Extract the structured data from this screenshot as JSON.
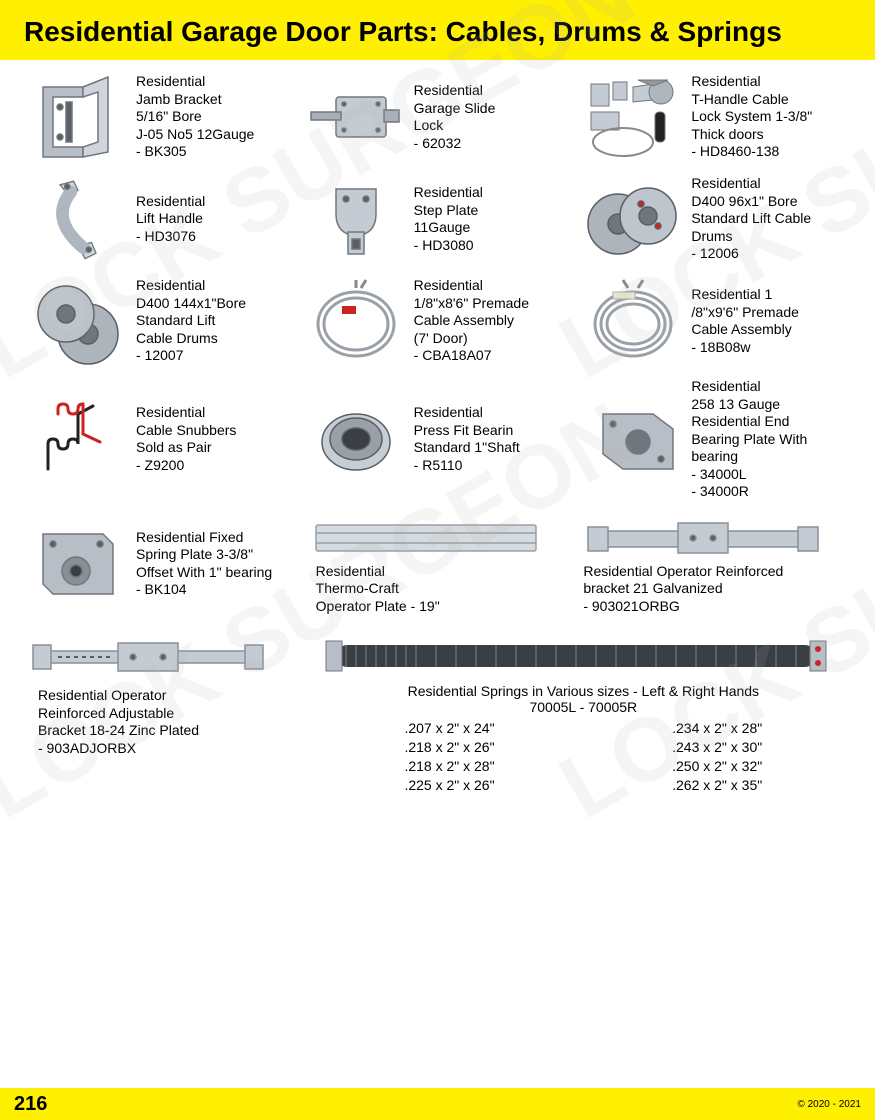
{
  "header": {
    "title": "Residential Garage Door Parts: Cables, Drums & Springs"
  },
  "watermark_text": "LOCK SURGEON",
  "items": [
    {
      "name": "Residential\nJamb Bracket\n5/16\" Bore\nJ-05 No5 12Gauge\n- BK305"
    },
    {
      "name": "Residential\nGarage Slide\nLock\n- 62032"
    },
    {
      "name": "Residential\nT-Handle Cable\nLock System 1-3/8\"\nThick doors\n- HD8460-138"
    },
    {
      "name": "Residential\nLift Handle\n- HD3076"
    },
    {
      "name": "Residential\nStep Plate\n11Gauge\n- HD3080"
    },
    {
      "name": "Residential\nD400 96x1\" Bore\nStandard Lift Cable\nDrums\n- 12006"
    },
    {
      "name": "Residential\nD400 144x1\"Bore\nStandard Lift\nCable Drums\n- 12007"
    },
    {
      "name": "Residential\n1/8\"x8'6\" Premade\nCable Assembly\n(7' Door)\n- CBA18A07"
    },
    {
      "name": "Residential 1\n/8\"x9'6\" Premade\nCable Assembly\n- 18B08w"
    },
    {
      "name": "Residential\nCable Snubbers\nSold as Pair\n- Z9200"
    },
    {
      "name": "Residential\nPress Fit Bearin\nStandard 1\"Shaft\n- R5110"
    },
    {
      "name": "Residential\n258 13 Gauge\nResidential End\nBearing Plate With\nbearing\n- 34000L\n- 34000R"
    },
    {
      "name": "Residential Fixed\nSpring Plate 3-3/8\"\nOffset With 1\" bearing\n- BK104"
    },
    {
      "name": "Residential\nThermo-Craft\nOperator Plate - 19\""
    },
    {
      "name": "Residential Operator Reinforced\nbracket 21 Galvanized\n- 903021ORBG"
    }
  ],
  "adjust_bracket": "Residential Operator\nReinforced Adjustable\nBracket 18-24 Zinc Plated\n- 903ADJORBX",
  "springs": {
    "title": "Residential Springs in Various sizes - Left & Right Hands",
    "subtitle": "70005L  -  70005R",
    "col1": [
      ".207 x 2\" x 24\"",
      ".218 x 2\" x 26\"",
      ".218 x 2\" x 28\"",
      ".225 x 2\" x 26\""
    ],
    "col2": [
      ".234 x 2\" x 28\"",
      ".243 x 2\" x 30\"",
      ".250 x 2\" x 32\"",
      ".262 x 2\" x 35\""
    ]
  },
  "footer": {
    "page": "216",
    "copyright": "© 2020 - 2021"
  },
  "colors": {
    "header_bg": "#ffef00",
    "metal": "#b8bec5",
    "metal_dark": "#888f96",
    "red": "#cc2222"
  }
}
